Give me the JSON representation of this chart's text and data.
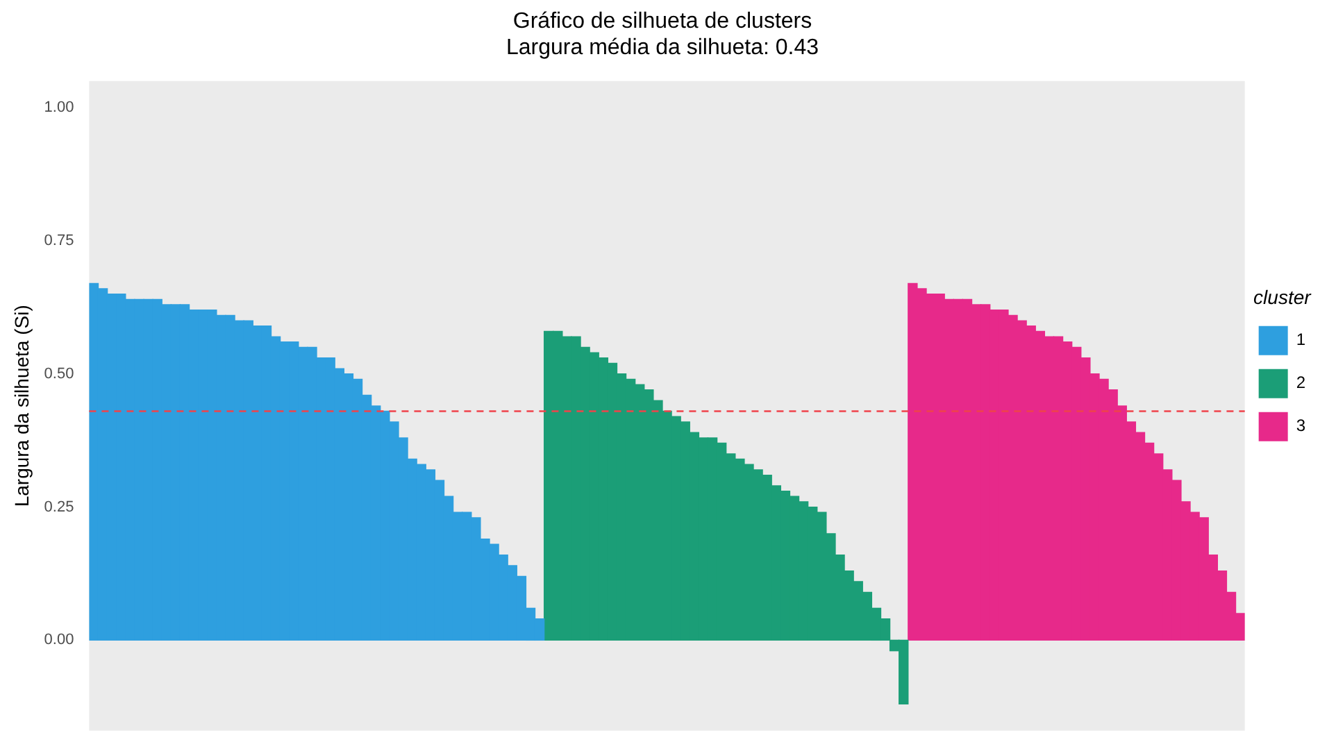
{
  "chart_data": {
    "type": "bar",
    "title": "Gráfico de silhueta de clusters",
    "subtitle": "Largura média da silhueta: 0.43",
    "ylabel": "Largura da silhueta (Si)",
    "legend_title": "cluster",
    "categories": [
      null,
      null,
      null,
      null,
      null,
      null,
      null,
      null,
      null,
      null,
      null,
      null,
      null,
      null,
      null,
      null,
      null,
      null,
      null,
      null,
      null,
      null,
      null,
      null,
      null,
      null,
      null,
      null,
      null,
      null,
      null,
      null,
      null,
      null,
      null,
      null,
      null,
      null,
      null,
      null,
      null,
      null,
      null,
      null,
      null,
      null,
      null,
      null,
      null,
      null,
      null,
      null,
      null,
      null,
      null,
      null,
      null,
      null,
      null,
      null,
      null,
      null,
      null,
      null,
      null,
      null,
      null,
      null,
      null,
      null,
      null,
      null,
      null,
      null,
      null,
      null,
      null,
      null,
      null,
      null,
      null,
      null,
      null,
      null,
      null,
      null,
      null,
      null,
      null,
      null,
      null,
      null,
      null,
      null,
      null,
      null,
      null,
      null,
      null,
      null,
      null,
      null,
      null,
      null,
      null,
      null,
      null,
      null,
      null,
      null,
      null,
      null,
      null,
      null,
      null,
      null,
      null,
      null,
      null,
      null,
      null,
      null,
      null,
      null,
      null,
      null,
      null
    ],
    "series": [
      {
        "name": "1",
        "color": "#2e9fdf",
        "values": [
          0.67,
          0.66,
          0.65,
          0.65,
          0.64,
          0.64,
          0.64,
          0.64,
          0.63,
          0.63,
          0.63,
          0.62,
          0.62,
          0.62,
          0.61,
          0.61,
          0.6,
          0.6,
          0.59,
          0.59,
          0.57,
          0.56,
          0.56,
          0.55,
          0.55,
          0.53,
          0.53,
          0.51,
          0.5,
          0.49,
          0.46,
          0.44,
          0.43,
          0.41,
          0.38,
          0.34,
          0.33,
          0.32,
          0.3,
          0.27,
          0.24,
          0.24,
          0.23,
          0.19,
          0.18,
          0.16,
          0.14,
          0.12,
          0.06,
          0.04,
          null,
          null,
          null,
          null,
          null,
          null,
          null,
          null,
          null,
          null,
          null,
          null,
          null,
          null,
          null,
          null,
          null,
          null,
          null,
          null,
          null,
          null,
          null,
          null,
          null,
          null,
          null,
          null,
          null,
          null,
          null,
          null,
          null,
          null,
          null,
          null,
          null,
          null,
          null,
          null,
          null,
          null,
          null,
          null,
          null,
          null,
          null,
          null,
          null,
          null,
          null,
          null,
          null,
          null,
          null,
          null,
          null,
          null,
          null,
          null,
          null,
          null,
          null,
          null,
          null,
          null,
          null,
          null,
          null,
          null,
          null,
          null,
          null,
          null,
          null,
          null,
          null
        ]
      },
      {
        "name": "2",
        "color": "#1b9e77",
        "values": [
          null,
          null,
          null,
          null,
          null,
          null,
          null,
          null,
          null,
          null,
          null,
          null,
          null,
          null,
          null,
          null,
          null,
          null,
          null,
          null,
          null,
          null,
          null,
          null,
          null,
          null,
          null,
          null,
          null,
          null,
          null,
          null,
          null,
          null,
          null,
          null,
          null,
          null,
          null,
          null,
          null,
          null,
          null,
          null,
          null,
          null,
          null,
          null,
          null,
          null,
          0.58,
          0.58,
          0.57,
          0.57,
          0.55,
          0.54,
          0.53,
          0.52,
          0.5,
          0.49,
          0.48,
          0.47,
          0.45,
          0.43,
          0.42,
          0.41,
          0.39,
          0.38,
          0.38,
          0.37,
          0.35,
          0.34,
          0.33,
          0.32,
          0.31,
          0.29,
          0.28,
          0.27,
          0.26,
          0.25,
          0.24,
          0.2,
          0.16,
          0.13,
          0.11,
          0.09,
          0.06,
          0.04,
          -0.02,
          -0.12,
          null,
          null,
          null,
          null,
          null,
          null,
          null,
          null,
          null,
          null,
          null,
          null,
          null,
          null,
          null,
          null,
          null,
          null,
          null,
          null,
          null,
          null,
          null,
          null,
          null,
          null,
          null,
          null,
          null,
          null,
          null,
          null,
          null,
          null,
          null,
          null,
          null
        ]
      },
      {
        "name": "3",
        "color": "#e7298a",
        "values": [
          null,
          null,
          null,
          null,
          null,
          null,
          null,
          null,
          null,
          null,
          null,
          null,
          null,
          null,
          null,
          null,
          null,
          null,
          null,
          null,
          null,
          null,
          null,
          null,
          null,
          null,
          null,
          null,
          null,
          null,
          null,
          null,
          null,
          null,
          null,
          null,
          null,
          null,
          null,
          null,
          null,
          null,
          null,
          null,
          null,
          null,
          null,
          null,
          null,
          null,
          null,
          null,
          null,
          null,
          null,
          null,
          null,
          null,
          null,
          null,
          null,
          null,
          null,
          null,
          null,
          null,
          null,
          null,
          null,
          null,
          null,
          null,
          null,
          null,
          null,
          null,
          null,
          null,
          null,
          null,
          null,
          null,
          null,
          null,
          null,
          null,
          null,
          null,
          null,
          null,
          0.67,
          0.66,
          0.65,
          0.65,
          0.64,
          0.64,
          0.64,
          0.63,
          0.63,
          0.62,
          0.62,
          0.61,
          0.6,
          0.59,
          0.58,
          0.57,
          0.57,
          0.56,
          0.55,
          0.53,
          0.5,
          0.49,
          0.47,
          0.44,
          0.41,
          0.39,
          0.37,
          0.35,
          0.32,
          0.3,
          0.26,
          0.24,
          0.23,
          0.16,
          0.13,
          0.09,
          0.05
        ]
      }
    ],
    "ylim": [
      -0.17,
      1.05
    ],
    "yticks": [
      {
        "value": 0,
        "label": "0.00"
      },
      {
        "value": 0.25,
        "label": "0.25"
      },
      {
        "value": 0.5,
        "label": "0.50"
      },
      {
        "value": 0.75,
        "label": "0.75"
      },
      {
        "value": 1,
        "label": "1.00"
      }
    ],
    "ref_lines": [
      {
        "axis": "y",
        "value": 0.43,
        "color": "#f0434b",
        "line_style": "dashed"
      }
    ],
    "tick_labels": "y",
    "grid": false,
    "legend": "right"
  }
}
